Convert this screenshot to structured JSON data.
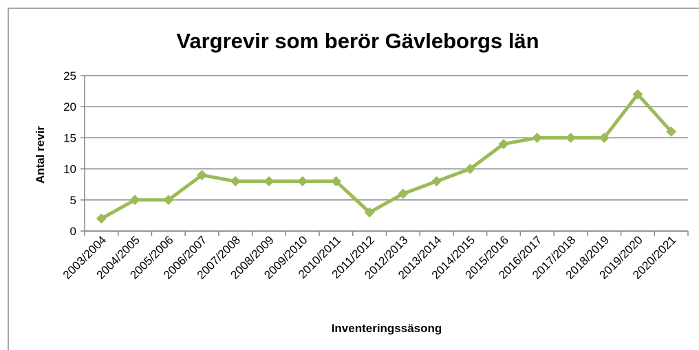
{
  "chart_data": {
    "type": "line",
    "title": "Vargrevir som berör Gävleborgs län",
    "x_label": "Inventeringssäsong",
    "y_label": "Antal revir",
    "categories": [
      "2003/2004",
      "2004/2005",
      "2005/2006",
      "2006/2007",
      "2007/2008",
      "2008/2009",
      "2009/2010",
      "2010/2011",
      "2011/2012",
      "2012/2013",
      "2013/2014",
      "2014/2015",
      "2015/2016",
      "2016/2017",
      "2017/2018",
      "2018/2019",
      "2019/2020",
      "2020/2021"
    ],
    "series": [
      {
        "name": "Antal revir",
        "color": "#9bbb59",
        "values": [
          2,
          5,
          5,
          9,
          8,
          8,
          8,
          8,
          3,
          6,
          8,
          10,
          14,
          15,
          15,
          15,
          22,
          16
        ]
      }
    ],
    "ylim": [
      0,
      25
    ],
    "yticks": [
      0,
      5,
      10,
      15,
      20,
      25
    ],
    "grid": true
  }
}
